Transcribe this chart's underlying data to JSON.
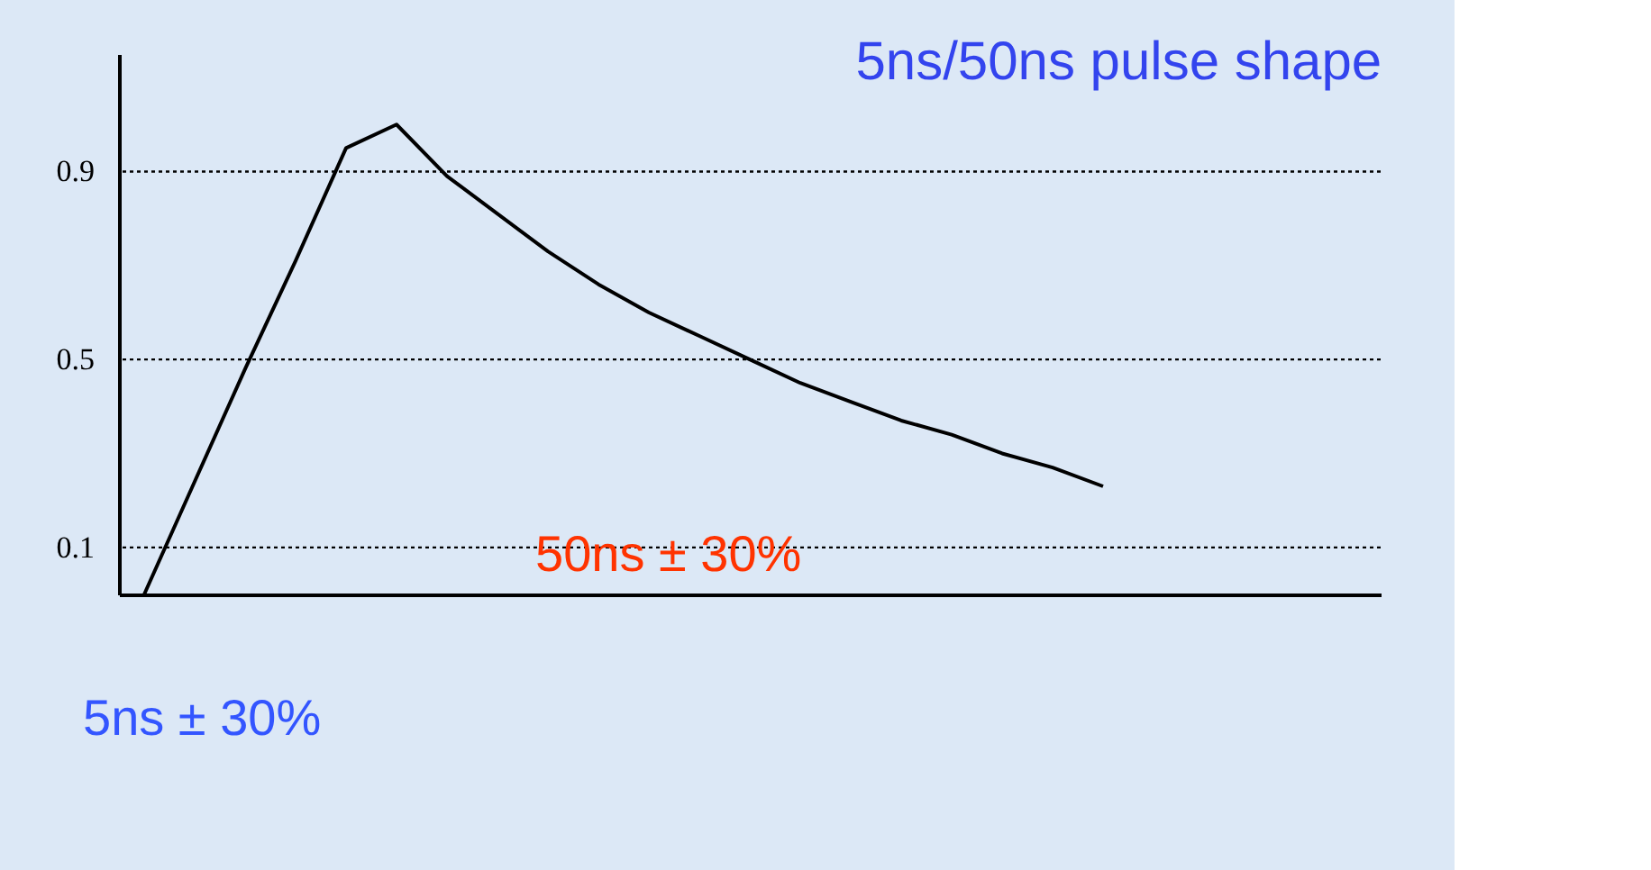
{
  "chart_data": {
    "type": "line",
    "title": "5ns/50ns pulse shape",
    "categories": [
      null,
      null,
      null,
      null,
      null,
      null,
      null,
      null,
      null,
      null,
      null,
      null,
      null,
      null,
      null,
      null,
      null,
      null,
      null,
      null,
      null,
      null,
      null,
      null,
      null
    ],
    "series": [
      {
        "color": "#000000",
        "values": [
          0,
          0.24,
          0.48,
          0.71,
          0.95,
          1.0,
          0.89,
          0.81,
          0.73,
          0.66,
          0.6,
          0.55,
          0.5,
          0.45,
          0.41,
          0.37,
          0.34,
          0.3,
          0.27,
          0.23,
          null,
          null,
          null,
          null,
          null
        ]
      }
    ],
    "ylim": [
      0,
      1.15
    ],
    "yticks": [
      0.1,
      0.5,
      0.9
    ],
    "ref_lines": [
      {
        "axis": "y",
        "value": 0.9,
        "line_style": "dotted"
      },
      {
        "axis": "y",
        "value": 0.5,
        "line_style": "dotted"
      },
      {
        "axis": "y",
        "value": 0.1,
        "line_style": "dotted"
      }
    ],
    "annotations": [
      "50ns ± 30%",
      "5ns ± 30%"
    ],
    "grid": false,
    "marker": "none",
    "line_style": "solid"
  }
}
